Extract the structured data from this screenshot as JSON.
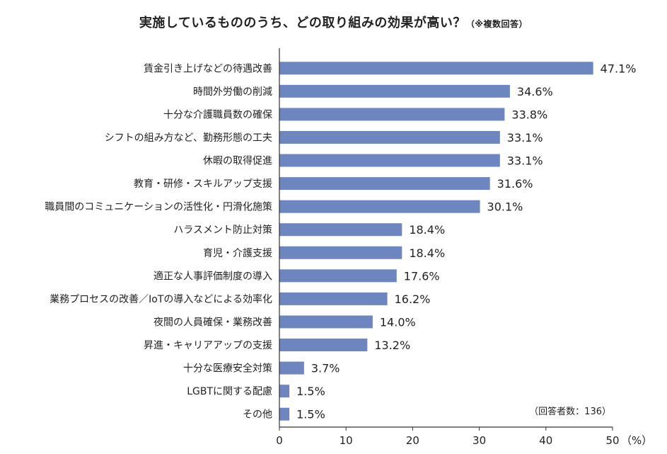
{
  "chart_data": {
    "type": "bar",
    "orientation": "horizontal",
    "title": "実施しているもののうち、どの取り組みの効果が高い？",
    "title_note": "（※複数回答）",
    "categories": [
      "賃金引き上げなどの待遇改善",
      "時間外労働の削減",
      "十分な介護職員数の確保",
      "シフトの組み方など、勤務形態の工夫",
      "休暇の取得促進",
      "教育・研修・スキルアップ支援",
      "職員間のコミュニケーションの活性化・円滑化施策",
      "ハラスメント防止対策",
      "育児・介護支援",
      "適正な人事評価制度の導入",
      "業務プロセスの改善／IoTの導入などによる効率化",
      "夜間の人員確保・業務改善",
      "昇進・キャリアアップの支援",
      "十分な医療安全対策",
      "LGBTに関する配慮",
      "その他"
    ],
    "values": [
      47.1,
      34.6,
      33.8,
      33.1,
      33.1,
      31.6,
      30.1,
      18.4,
      18.4,
      17.6,
      16.2,
      14.0,
      13.2,
      3.7,
      1.5,
      1.5
    ],
    "value_labels": [
      "47.1%",
      "34.6%",
      "33.8%",
      "33.1%",
      "33.1%",
      "31.6%",
      "30.1%",
      "18.4%",
      "18.4%",
      "17.6%",
      "16.2%",
      "14.0%",
      "13.2%",
      "3.7%",
      "1.5%",
      "1.5%"
    ],
    "xlim": [
      0,
      50
    ],
    "xticks": [
      0,
      10,
      20,
      30,
      40,
      50
    ],
    "xunit": "（%）",
    "respondents_note": "（回答者数：136）",
    "bar_color": "#6e86bf",
    "grid": false
  }
}
